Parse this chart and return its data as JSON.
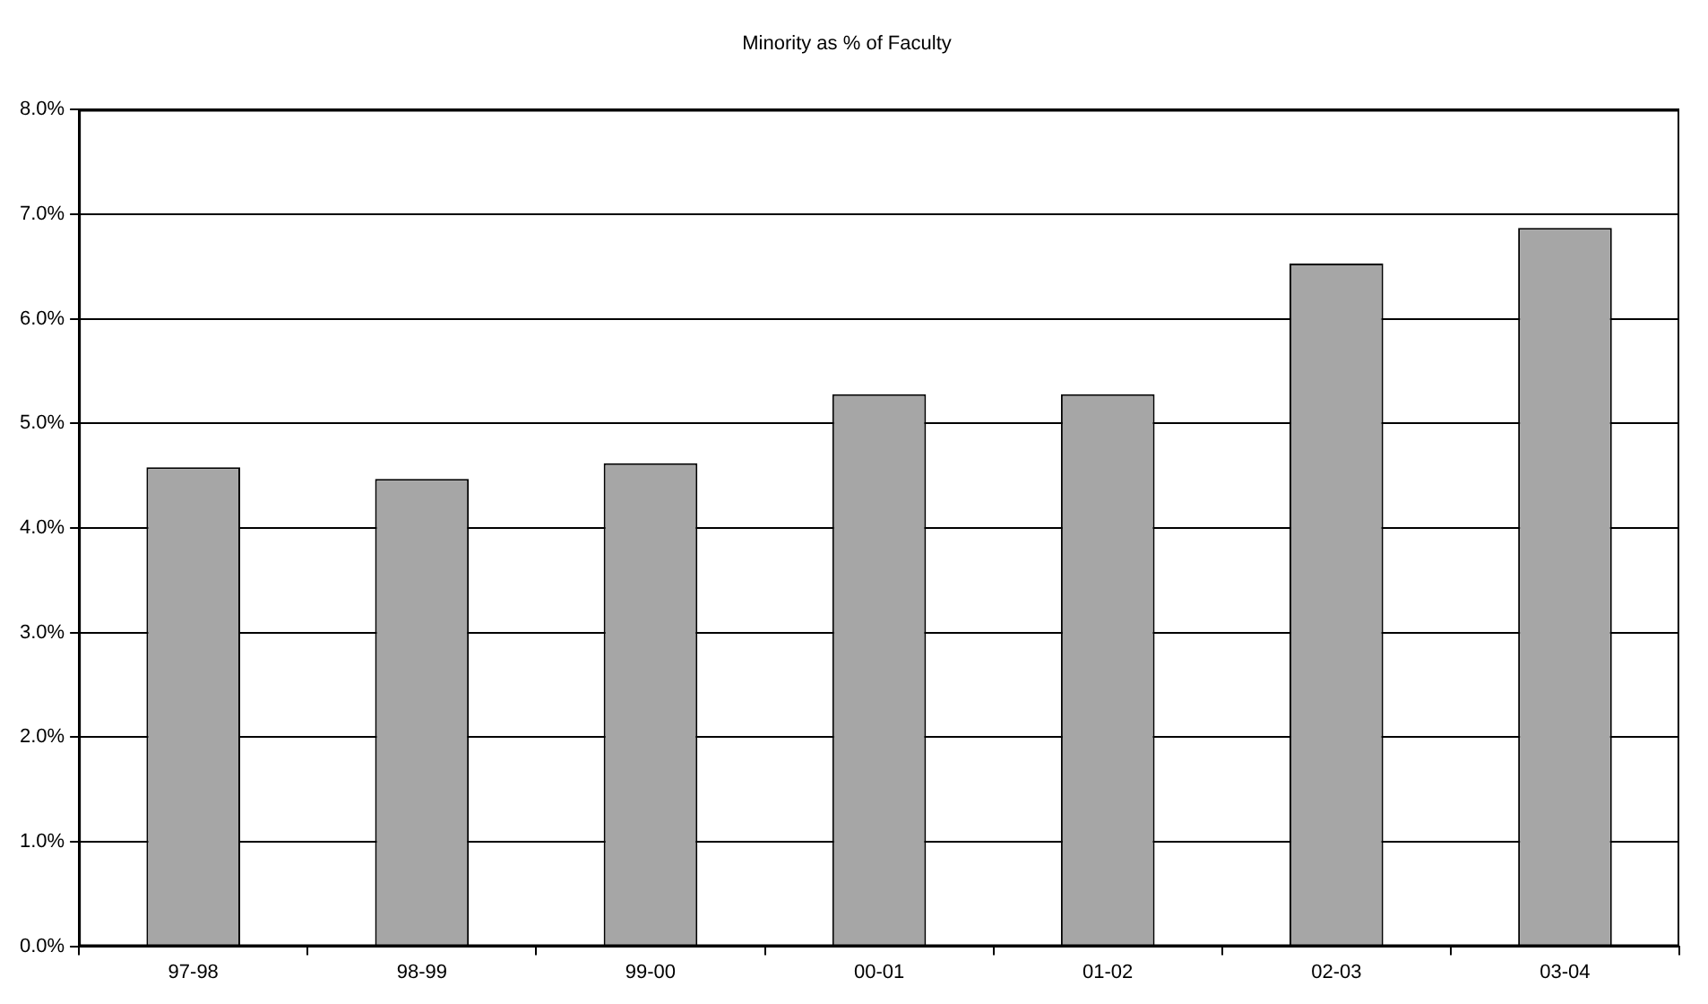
{
  "chart_data": {
    "type": "bar",
    "title": "Minority as % of Faculty",
    "categories": [
      "97-98",
      "98-99",
      "99-00",
      "00-01",
      "01-02",
      "02-03",
      "03-04"
    ],
    "values": [
      4.58,
      4.47,
      4.62,
      5.28,
      5.28,
      6.53,
      6.87
    ],
    "color": "#a6a6a6",
    "ylim": [
      0,
      8
    ],
    "yticks": [
      {
        "value": 0,
        "label": "0.0%"
      },
      {
        "value": 1,
        "label": "1.0%"
      },
      {
        "value": 2,
        "label": "2.0%"
      },
      {
        "value": 3,
        "label": "3.0%"
      },
      {
        "value": 4,
        "label": "4.0%"
      },
      {
        "value": 5,
        "label": "5.0%"
      },
      {
        "value": 6,
        "label": "6.0%"
      },
      {
        "value": 7,
        "label": "7.0%"
      },
      {
        "value": 8,
        "label": "8.0%"
      }
    ],
    "grid": "y"
  }
}
